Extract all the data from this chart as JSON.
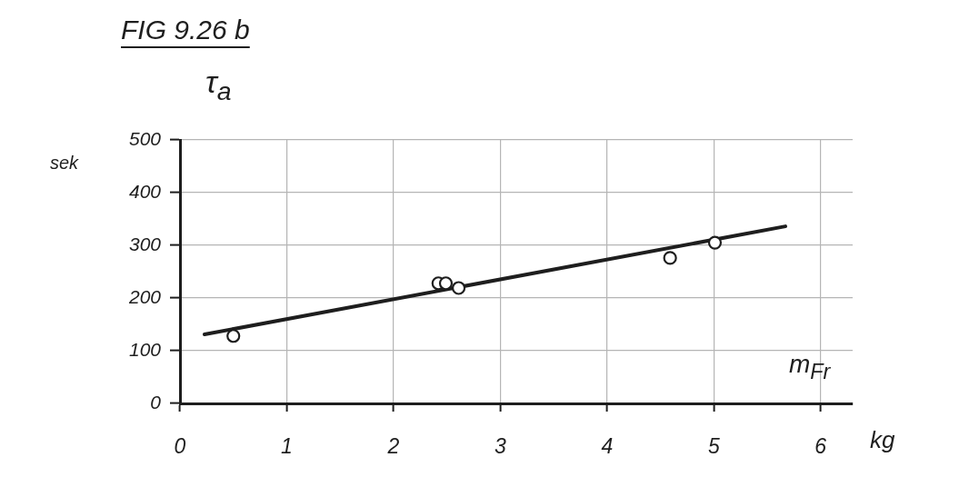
{
  "chart_data": {
    "type": "scatter",
    "title": "FIG 9.26 b",
    "xlabel": "m$_{Fr}$",
    "ylabel": "τ$_{a}$",
    "annotations": [
      "kg",
      "sek"
    ],
    "xlim": [
      0,
      6.3
    ],
    "ylim": [
      0,
      500
    ],
    "xticks": [
      0,
      1,
      2,
      3,
      4,
      5,
      6
    ],
    "yticks": [
      0,
      100,
      200,
      300,
      400,
      500
    ],
    "grid": true,
    "series": [
      {
        "type": "scatter",
        "marker": "circle",
        "color": "#1e1e1e",
        "x": [
          0.5,
          2.42,
          2.49,
          2.61,
          4.59,
          5.01
        ],
        "values": [
          128,
          228,
          228,
          219,
          276,
          305
        ]
      },
      {
        "type": "line",
        "marker": "none",
        "color": "#1e1e1e",
        "x": [
          0.23,
          5.67
        ],
        "values": [
          131,
          336
        ]
      }
    ]
  }
}
